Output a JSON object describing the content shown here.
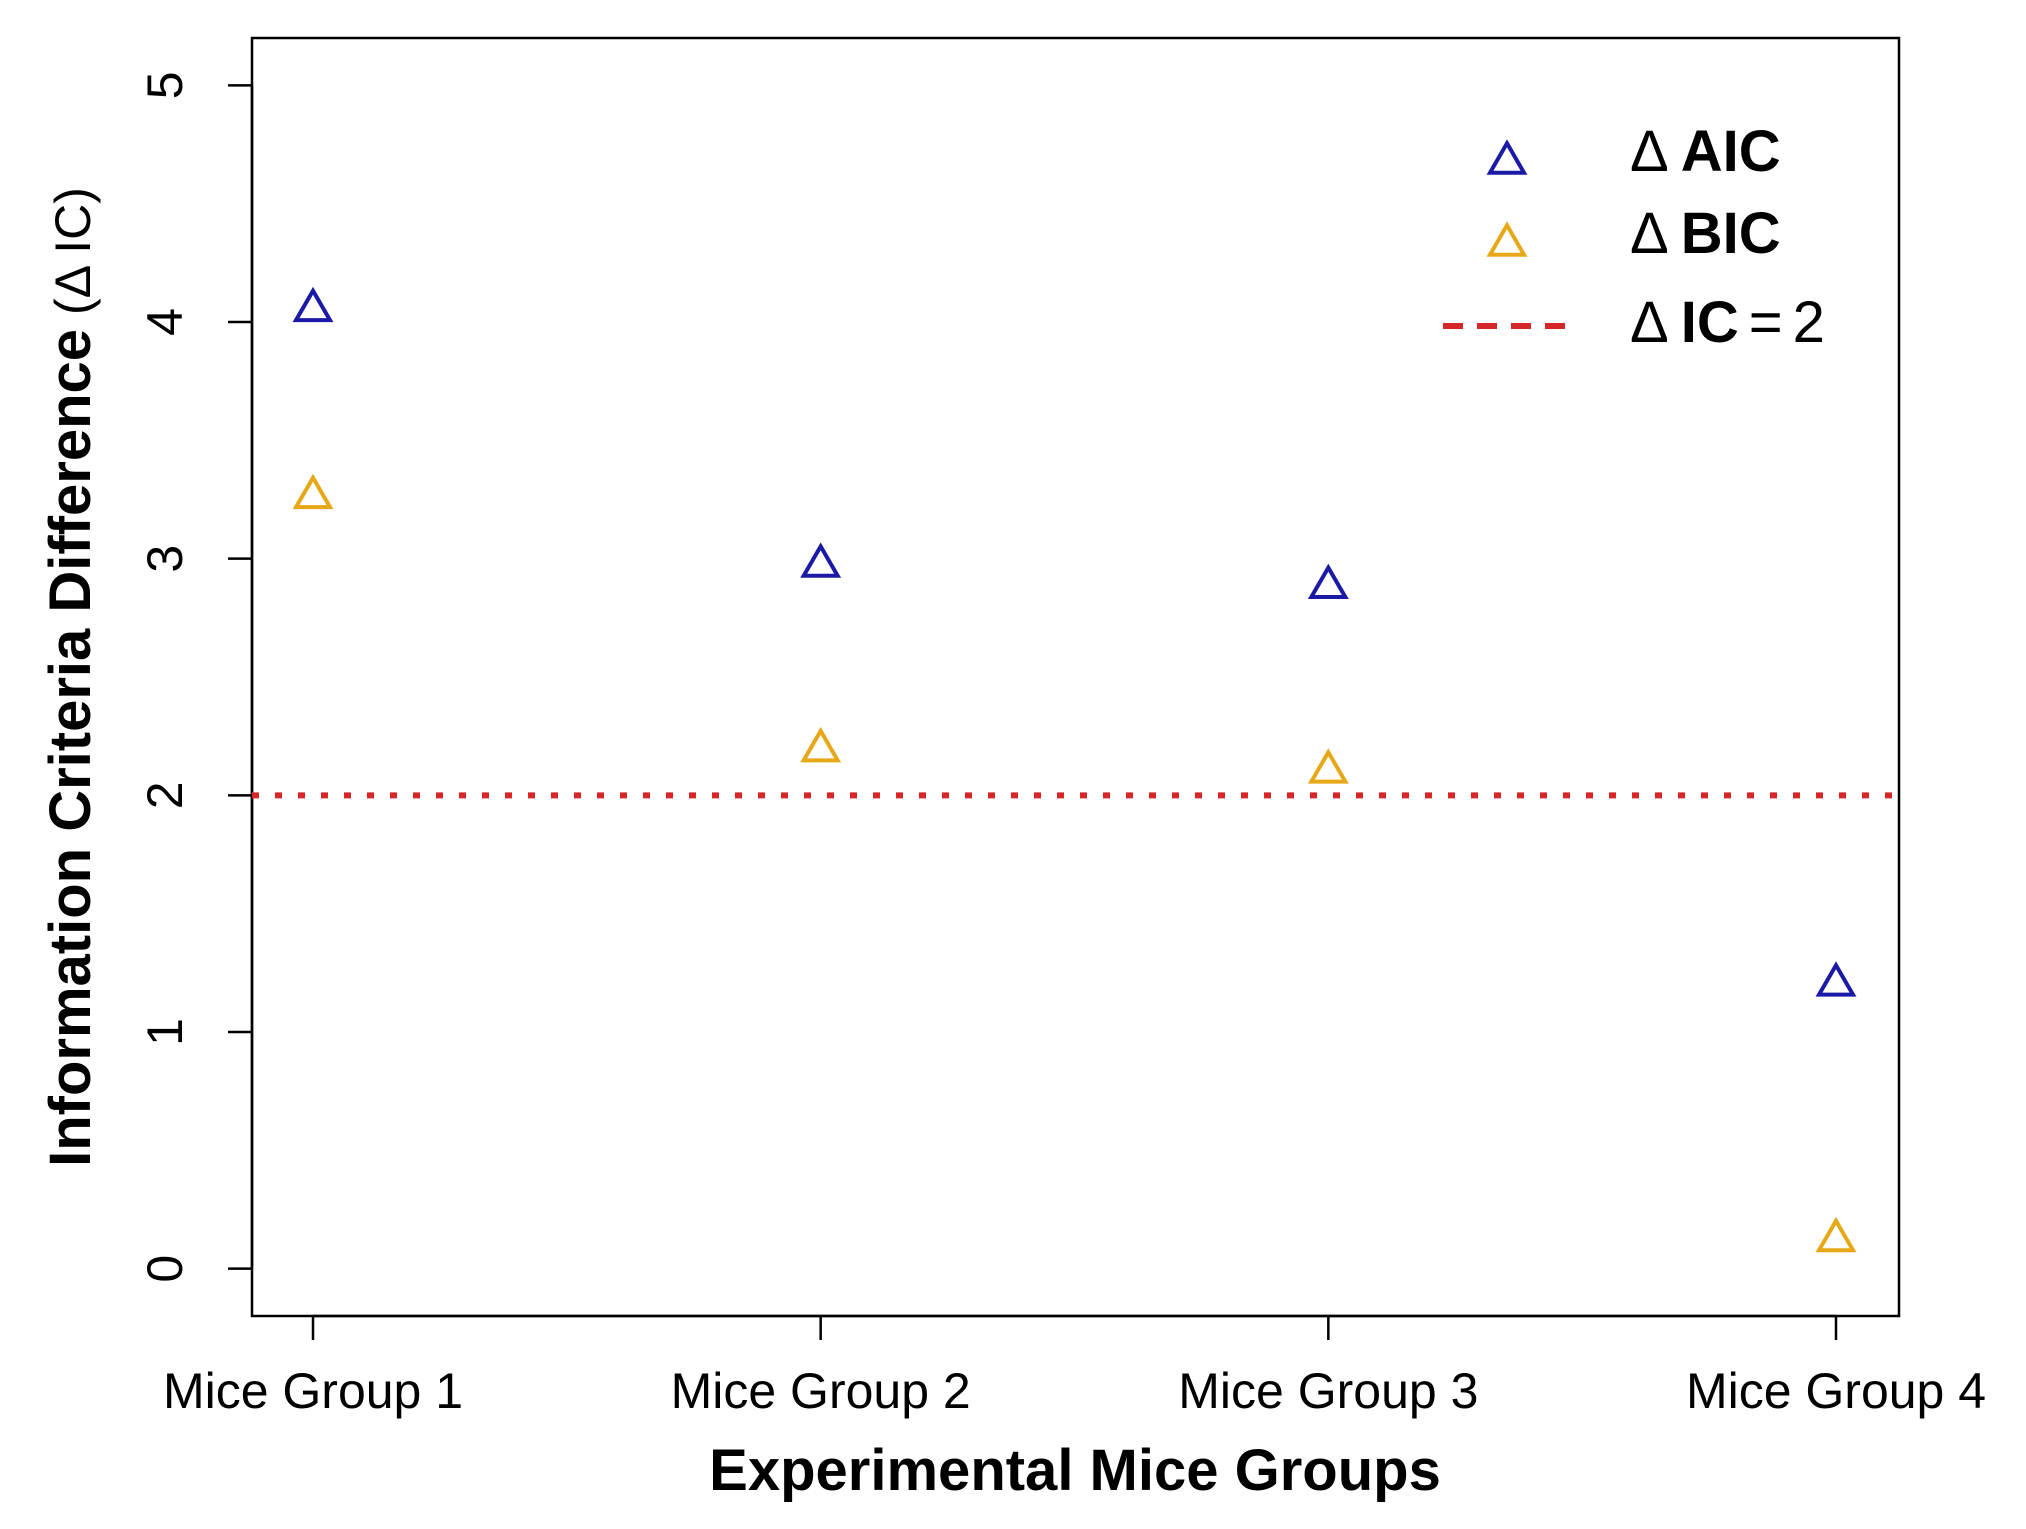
{
  "chart_data": {
    "type": "scatter",
    "categories": [
      "Mice Group 1",
      "Mice Group 2",
      "Mice Group 3",
      "Mice Group 4"
    ],
    "series": [
      {
        "name": "AIC",
        "symbol": "Δ",
        "marker": "open-triangle",
        "color": "#1a1aa6",
        "values": [
          4.07,
          2.99,
          2.9,
          1.22
        ]
      },
      {
        "name": "BIC",
        "symbol": "Δ",
        "marker": "open-triangle",
        "color": "#e6a817",
        "values": [
          3.28,
          2.21,
          2.12,
          0.14
        ]
      }
    ],
    "reference_line": {
      "y": 2,
      "color": "#d62728",
      "style": "dotted",
      "label_symbol": "Δ",
      "label_main": "IC",
      "label_eq": "=",
      "label_value": "2"
    },
    "xlabel": "Experimental Mice Groups",
    "ylabel_main": "Information Criteria Difference",
    "ylabel_paren": "(Δ IC)",
    "ylim": [
      -0.2,
      5.2
    ],
    "yticks": [
      0,
      1,
      2,
      3,
      4,
      5
    ],
    "ytick_labels": [
      "0",
      "1",
      "2",
      "3",
      "4",
      "5"
    ],
    "legend_position": "top-right"
  }
}
